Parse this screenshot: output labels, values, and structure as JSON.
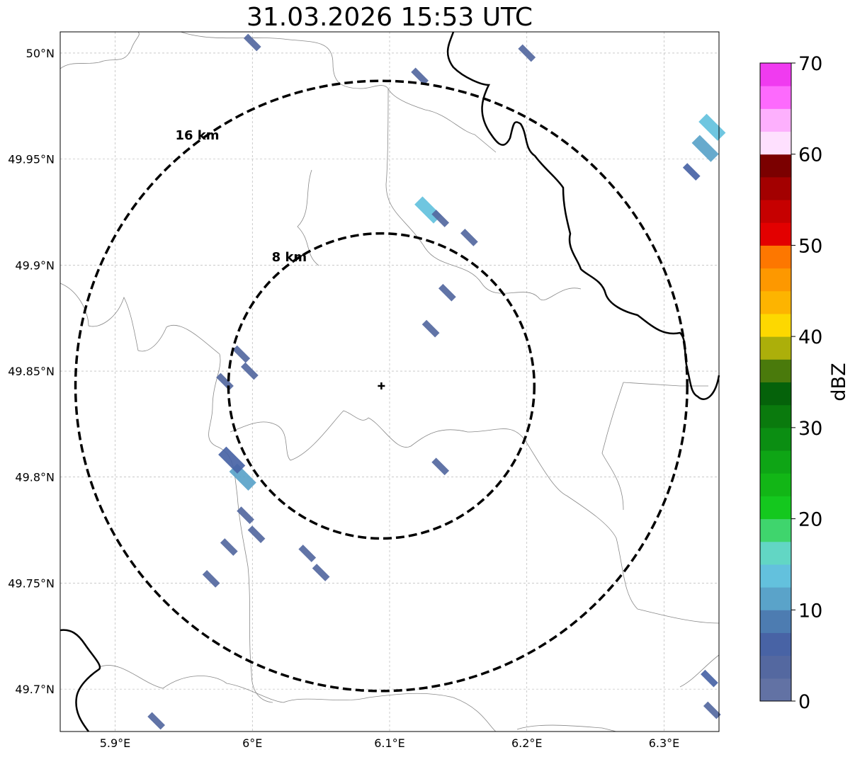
{
  "title": "31.03.2026 15:53 UTC",
  "map": {
    "lon_range": [
      5.86,
      6.34
    ],
    "lat_range": [
      49.68,
      50.01
    ],
    "center": {
      "lon": 6.094,
      "lat": 49.843
    },
    "lon_ticks": [
      {
        "value": 5.9,
        "label": "5.9°E"
      },
      {
        "value": 6.0,
        "label": "6°E"
      },
      {
        "value": 6.1,
        "label": "6.1°E"
      },
      {
        "value": 6.2,
        "label": "6.2°E"
      },
      {
        "value": 6.3,
        "label": "6.3°E"
      }
    ],
    "lat_ticks": [
      {
        "value": 50.0,
        "label": "50°N"
      },
      {
        "value": 49.95,
        "label": "49.95°N"
      },
      {
        "value": 49.9,
        "label": "49.9°N"
      },
      {
        "value": 49.85,
        "label": "49.85°N"
      },
      {
        "value": 49.8,
        "label": "49.8°N"
      },
      {
        "value": 49.75,
        "label": "49.75°N"
      },
      {
        "value": 49.7,
        "label": "49.7°N"
      }
    ],
    "rings": [
      {
        "radius_km": 8,
        "label": "8 km"
      },
      {
        "radius_km": 16,
        "label": "16 km"
      }
    ],
    "gridlines": true,
    "center_marker": "cross-icon"
  },
  "colorbar": {
    "label": "dBZ",
    "min": 0,
    "max": 70,
    "step": 2.5,
    "ticks": [
      {
        "value": 0,
        "label": "0"
      },
      {
        "value": 10,
        "label": "10"
      },
      {
        "value": 20,
        "label": "20"
      },
      {
        "value": 30,
        "label": "30"
      },
      {
        "value": 40,
        "label": "40"
      },
      {
        "value": 50,
        "label": "50"
      },
      {
        "value": 60,
        "label": "60"
      },
      {
        "value": 70,
        "label": "70"
      }
    ],
    "colors": [
      "#6272a4",
      "#5468a0",
      "#4863a5",
      "#4d7cb1",
      "#5aa3c9",
      "#63c1dd",
      "#62d6c4",
      "#3fd56d",
      "#14c81e",
      "#12b616",
      "#0ea515",
      "#0b8e12",
      "#0a7a0d",
      "#05620a",
      "#4a7a0c",
      "#acaf0a",
      "#fdd800",
      "#fdb400",
      "#fd9800",
      "#fd7700",
      "#e30000",
      "#c60000",
      "#a30000",
      "#7b0000",
      "#fee0fe",
      "#fdb0fd",
      "#fd6afd",
      "#f03bf0"
    ]
  },
  "echoes": [
    {
      "lon": 6.0,
      "lat": 50.005,
      "dbz": 3
    },
    {
      "lon": 6.122,
      "lat": 49.989,
      "dbz": 3
    },
    {
      "lon": 6.2,
      "lat": 50.0,
      "dbz": 4
    },
    {
      "lon": 6.33,
      "lat": 49.955,
      "dbz": 11
    },
    {
      "lon": 6.335,
      "lat": 49.965,
      "dbz": 14
    },
    {
      "lon": 6.32,
      "lat": 49.944,
      "dbz": 5
    },
    {
      "lon": 6.128,
      "lat": 49.926,
      "dbz": 14
    },
    {
      "lon": 6.137,
      "lat": 49.922,
      "dbz": 4
    },
    {
      "lon": 6.158,
      "lat": 49.913,
      "dbz": 3
    },
    {
      "lon": 6.142,
      "lat": 49.887,
      "dbz": 3
    },
    {
      "lon": 6.13,
      "lat": 49.87,
      "dbz": 3
    },
    {
      "lon": 5.992,
      "lat": 49.858,
      "dbz": 3
    },
    {
      "lon": 5.998,
      "lat": 49.85,
      "dbz": 4
    },
    {
      "lon": 5.98,
      "lat": 49.845,
      "dbz": 3
    },
    {
      "lon": 5.993,
      "lat": 49.8,
      "dbz": 10
    },
    {
      "lon": 5.985,
      "lat": 49.808,
      "dbz": 6
    },
    {
      "lon": 6.137,
      "lat": 49.805,
      "dbz": 3
    },
    {
      "lon": 5.995,
      "lat": 49.782,
      "dbz": 3
    },
    {
      "lon": 6.003,
      "lat": 49.773,
      "dbz": 4
    },
    {
      "lon": 5.983,
      "lat": 49.767,
      "dbz": 3
    },
    {
      "lon": 6.04,
      "lat": 49.764,
      "dbz": 3
    },
    {
      "lon": 6.05,
      "lat": 49.755,
      "dbz": 3
    },
    {
      "lon": 5.97,
      "lat": 49.752,
      "dbz": 3
    },
    {
      "lon": 5.93,
      "lat": 49.685,
      "dbz": 3
    },
    {
      "lon": 6.333,
      "lat": 49.705,
      "dbz": 5
    },
    {
      "lon": 6.335,
      "lat": 49.69,
      "dbz": 3
    }
  ]
}
